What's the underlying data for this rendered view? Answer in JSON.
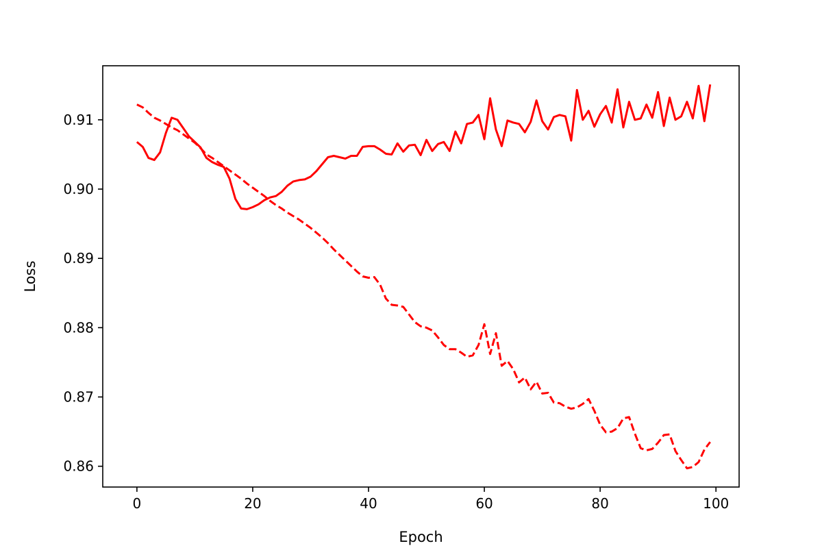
{
  "chart_data": {
    "type": "line",
    "title": "",
    "xlabel": "Epoch",
    "ylabel": "Loss",
    "xlim": [
      -5.9,
      104
    ],
    "ylim": [
      0.857,
      0.9178
    ],
    "xticks": [
      0,
      20,
      40,
      60,
      80,
      100
    ],
    "xtick_labels": [
      "0",
      "20",
      "40",
      "60",
      "80",
      "100"
    ],
    "yticks": [
      0.86,
      0.87,
      0.88,
      0.89,
      0.9,
      0.91
    ],
    "ytick_labels": [
      "0.86",
      "0.87",
      "0.88",
      "0.89",
      "0.90",
      "0.91"
    ],
    "grid": false,
    "legend": "none",
    "series": [
      {
        "color": "#ff0000",
        "linestyle": "solid",
        "x": [
          0,
          1,
          2,
          3,
          4,
          5,
          6,
          7,
          8,
          9,
          10,
          11,
          12,
          13,
          14,
          15,
          16,
          17,
          18,
          19,
          20,
          21,
          22,
          23,
          24,
          25,
          26,
          27,
          28,
          29,
          30,
          31,
          32,
          33,
          34,
          35,
          36,
          37,
          38,
          39,
          40,
          41,
          42,
          43,
          44,
          45,
          46,
          47,
          48,
          49,
          50,
          51,
          52,
          53,
          54,
          55,
          56,
          57,
          58,
          59,
          60,
          61,
          62,
          63,
          64,
          65,
          66,
          67,
          68,
          69,
          70,
          71,
          72,
          73,
          74,
          75,
          76,
          77,
          78,
          79,
          80,
          81,
          82,
          83,
          84,
          85,
          86,
          87,
          88,
          89,
          90,
          91,
          92,
          93,
          94,
          95,
          96,
          97,
          98,
          99
        ],
        "y": [
          0.9068,
          0.9061,
          0.9045,
          0.9042,
          0.9053,
          0.9081,
          0.9103,
          0.91,
          0.9088,
          0.9076,
          0.9068,
          0.906,
          0.9045,
          0.9039,
          0.9035,
          0.9032,
          0.9015,
          0.8986,
          0.8972,
          0.8971,
          0.8974,
          0.8978,
          0.8984,
          0.8988,
          0.899,
          0.8996,
          0.9005,
          0.9011,
          0.9013,
          0.9014,
          0.9018,
          0.9026,
          0.9036,
          0.9046,
          0.9048,
          0.9046,
          0.9044,
          0.9048,
          0.9048,
          0.9061,
          0.9062,
          0.9062,
          0.9057,
          0.9051,
          0.905,
          0.9066,
          0.9054,
          0.9063,
          0.9064,
          0.9049,
          0.9071,
          0.9055,
          0.9065,
          0.9068,
          0.9055,
          0.9083,
          0.9066,
          0.9094,
          0.9096,
          0.9107,
          0.9072,
          0.9131,
          0.9086,
          0.9062,
          0.9099,
          0.9096,
          0.9094,
          0.9082,
          0.9097,
          0.9128,
          0.9098,
          0.9086,
          0.9104,
          0.9107,
          0.9105,
          0.907,
          0.9143,
          0.91,
          0.9113,
          0.909,
          0.9108,
          0.912,
          0.9096,
          0.9144,
          0.9089,
          0.9126,
          0.91,
          0.9102,
          0.9122,
          0.9103,
          0.914,
          0.9091,
          0.9132,
          0.91,
          0.9105,
          0.9126,
          0.9102,
          0.9149,
          0.9098,
          0.9151
        ]
      },
      {
        "color": "#ff0000",
        "linestyle": "dashed",
        "x": [
          0,
          1,
          2,
          3,
          4,
          5,
          6,
          7,
          8,
          9,
          10,
          11,
          12,
          13,
          14,
          15,
          16,
          17,
          18,
          19,
          20,
          21,
          22,
          23,
          24,
          25,
          26,
          27,
          28,
          29,
          30,
          31,
          32,
          33,
          34,
          35,
          36,
          37,
          38,
          39,
          40,
          41,
          42,
          43,
          44,
          45,
          46,
          47,
          48,
          49,
          50,
          51,
          52,
          53,
          54,
          55,
          56,
          57,
          58,
          59,
          60,
          61,
          62,
          63,
          64,
          65,
          66,
          67,
          68,
          69,
          70,
          71,
          72,
          73,
          74,
          75,
          76,
          77,
          78,
          79,
          80,
          81,
          82,
          83,
          84,
          85,
          86,
          87,
          88,
          89,
          90,
          91,
          92,
          93,
          94,
          95,
          96,
          97,
          98,
          99
        ],
        "y": [
          0.9122,
          0.9118,
          0.911,
          0.9103,
          0.9099,
          0.9094,
          0.9089,
          0.9085,
          0.9079,
          0.9073,
          0.9067,
          0.9059,
          0.905,
          0.9045,
          0.9039,
          0.9033,
          0.9027,
          0.9021,
          0.9015,
          0.9008,
          0.9002,
          0.8996,
          0.899,
          0.8983,
          0.8977,
          0.8972,
          0.8966,
          0.8961,
          0.8956,
          0.895,
          0.8944,
          0.8937,
          0.893,
          0.8922,
          0.8913,
          0.8905,
          0.8897,
          0.8889,
          0.8881,
          0.8874,
          0.8872,
          0.8873,
          0.8862,
          0.8842,
          0.8833,
          0.8832,
          0.883,
          0.8819,
          0.8808,
          0.8802,
          0.88,
          0.8796,
          0.8786,
          0.8775,
          0.8769,
          0.8769,
          0.8764,
          0.8758,
          0.876,
          0.8775,
          0.8805,
          0.8762,
          0.8792,
          0.8745,
          0.8752,
          0.874,
          0.8721,
          0.8728,
          0.8711,
          0.8722,
          0.8705,
          0.8706,
          0.8692,
          0.8691,
          0.8686,
          0.8683,
          0.8685,
          0.869,
          0.8697,
          0.868,
          0.866,
          0.8649,
          0.865,
          0.8655,
          0.8669,
          0.8671,
          0.8647,
          0.8626,
          0.8623,
          0.8625,
          0.8634,
          0.8645,
          0.8646,
          0.8622,
          0.8609,
          0.8597,
          0.8599,
          0.8606,
          0.8624,
          0.8635
        ]
      }
    ]
  }
}
